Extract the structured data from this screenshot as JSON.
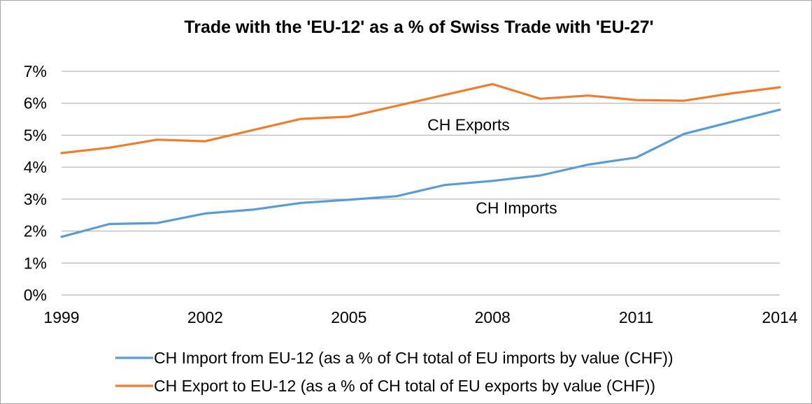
{
  "chart_data": {
    "type": "line",
    "title": "Trade with the 'EU-12' as a % of Swiss Trade with 'EU-27'",
    "xlabel": "",
    "ylabel": "",
    "x": [
      1999,
      2000,
      2001,
      2002,
      2003,
      2004,
      2005,
      2006,
      2007,
      2008,
      2009,
      2010,
      2011,
      2012,
      2013,
      2014
    ],
    "x_tick_labels": [
      "1999",
      "2002",
      "2005",
      "2008",
      "2011",
      "2014"
    ],
    "x_tick_values": [
      1999,
      2002,
      2005,
      2008,
      2011,
      2014
    ],
    "ylim": [
      0,
      7
    ],
    "y_ticks": [
      0,
      1,
      2,
      3,
      4,
      5,
      6,
      7
    ],
    "y_tick_labels": [
      "0%",
      "1%",
      "2%",
      "3%",
      "4%",
      "5%",
      "6%",
      "7%"
    ],
    "grid": true,
    "legend_position": "bottom",
    "series": [
      {
        "name": "CH Import from EU-12 (as a % of CH total of EU imports by value (CHF))",
        "color": "#5b9bd5",
        "values": [
          1.82,
          2.22,
          2.25,
          2.55,
          2.67,
          2.88,
          2.98,
          3.09,
          3.44,
          3.57,
          3.74,
          4.08,
          4.3,
          5.04,
          5.42,
          5.8
        ]
      },
      {
        "name": "CH Export to EU-12 (as a % of CH total of EU exports by value (CHF))",
        "color": "#ed7d31",
        "values": [
          4.44,
          4.61,
          4.86,
          4.81,
          5.16,
          5.51,
          5.58,
          5.92,
          6.26,
          6.6,
          6.14,
          6.24,
          6.1,
          6.08,
          6.31,
          6.5
        ]
      }
    ],
    "annotations": [
      {
        "text": "CH Exports",
        "x": 2007.5,
        "y": 5.15
      },
      {
        "text": "CH Imports",
        "x": 2008.5,
        "y": 2.55
      }
    ]
  }
}
